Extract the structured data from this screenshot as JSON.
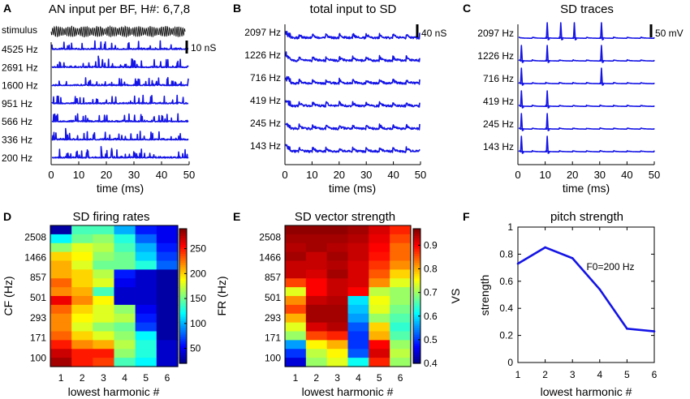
{
  "chart_data": [
    {
      "panel": "A",
      "type": "line",
      "title": "AN input per BF, H#: 6,7,8",
      "xlabel": "time (ms)",
      "ylabel": "",
      "xlim": [
        0,
        50
      ],
      "xticks": [
        "0",
        "10",
        "20",
        "30",
        "40",
        "50"
      ],
      "stimulus_label": "stimulus",
      "scale_bar_label": "10 nS",
      "trace_labels": [
        "4525 Hz",
        "2691 Hz",
        "1600 Hz",
        "951 Hz",
        "566 Hz",
        "336 Hz",
        "200 Hz"
      ]
    },
    {
      "panel": "B",
      "type": "line",
      "title": "total input to SD",
      "xlabel": "time (ms)",
      "ylabel": "",
      "xlim": [
        0,
        50
      ],
      "xticks": [
        "0",
        "10",
        "20",
        "30",
        "40",
        "50"
      ],
      "scale_bar_label": "40 nS",
      "trace_labels": [
        "2097 Hz",
        "1226 Hz",
        "716 Hz",
        "419 Hz",
        "245 Hz",
        "143 Hz"
      ]
    },
    {
      "panel": "C",
      "type": "line",
      "title": "SD traces",
      "xlabel": "time (ms)",
      "ylabel": "",
      "xlim": [
        0,
        50
      ],
      "xticks": [
        "0",
        "10",
        "20",
        "30",
        "40",
        "50"
      ],
      "scale_bar_label": "50 mV",
      "trace_labels": [
        "2097 Hz",
        "1226 Hz",
        "716 Hz",
        "419 Hz",
        "245 Hz",
        "143 Hz"
      ],
      "spike_times_ms": [
        [
          10.5,
          15.5,
          20.5,
          30.5
        ],
        [
          1.0,
          10.5,
          30.5
        ],
        [
          1.0,
          30.5
        ],
        [
          1.0,
          10.5
        ],
        [
          1.0,
          10.5
        ],
        [
          1.0,
          10.5
        ]
      ]
    },
    {
      "panel": "D",
      "type": "heatmap",
      "title": "SD firing rates",
      "xlabel": "lowest harmonic #",
      "ylabel": "CF (Hz)",
      "colorbar_label": "FR (Hz)",
      "x": [
        "1",
        "2",
        "3",
        "4",
        "5",
        "6"
      ],
      "y_ticks": [
        "2508",
        "1466",
        "857",
        "501",
        "293",
        "171",
        "100"
      ],
      "colorbar_ticks": [
        "50",
        "100",
        "150",
        "200",
        "250"
      ],
      "zlim": [
        20,
        290
      ],
      "rows_top_to_bottom": [
        [
          30,
          140,
          140,
          100,
          60,
          50
        ],
        [
          120,
          150,
          160,
          130,
          80,
          50
        ],
        [
          160,
          180,
          170,
          140,
          100,
          60
        ],
        [
          200,
          190,
          160,
          150,
          110,
          70
        ],
        [
          210,
          180,
          150,
          150,
          130,
          80
        ],
        [
          210,
          200,
          170,
          60,
          40,
          30
        ],
        [
          230,
          200,
          180,
          50,
          40,
          30
        ],
        [
          220,
          210,
          140,
          40,
          40,
          30
        ],
        [
          260,
          220,
          190,
          40,
          40,
          30
        ],
        [
          230,
          200,
          180,
          160,
          50,
          30
        ],
        [
          220,
          190,
          180,
          170,
          60,
          30
        ],
        [
          220,
          180,
          160,
          150,
          70,
          30
        ],
        [
          230,
          200,
          180,
          160,
          120,
          30
        ],
        [
          250,
          220,
          210,
          170,
          130,
          40
        ],
        [
          270,
          250,
          250,
          160,
          130,
          40
        ],
        [
          280,
          250,
          240,
          140,
          120,
          40
        ]
      ]
    },
    {
      "panel": "E",
      "type": "heatmap",
      "title": "SD vector strength",
      "xlabel": "lowest harmonic #",
      "ylabel": "",
      "colorbar_label": "VS",
      "x": [
        "1",
        "2",
        "3",
        "4",
        "5",
        "6"
      ],
      "y_ticks": [
        "2508",
        "1466",
        "857",
        "501",
        "293",
        "171",
        "100"
      ],
      "colorbar_ticks": [
        "0.4",
        "0.5",
        "0.6",
        "0.7",
        "0.8",
        "0.9"
      ],
      "zlim": [
        0.4,
        0.97
      ],
      "rows_top_to_bottom": [
        [
          0.96,
          0.96,
          0.96,
          0.95,
          0.92,
          0.88
        ],
        [
          0.95,
          0.95,
          0.95,
          0.94,
          0.91,
          0.86
        ],
        [
          0.94,
          0.95,
          0.94,
          0.93,
          0.9,
          0.84
        ],
        [
          0.95,
          0.93,
          0.95,
          0.93,
          0.89,
          0.84
        ],
        [
          0.93,
          0.93,
          0.94,
          0.92,
          0.87,
          0.82
        ],
        [
          0.93,
          0.92,
          0.95,
          0.92,
          0.85,
          0.78
        ],
        [
          0.86,
          0.9,
          0.93,
          0.92,
          0.82,
          0.74
        ],
        [
          0.74,
          0.9,
          0.93,
          0.9,
          0.72,
          0.7
        ],
        [
          0.82,
          0.93,
          0.94,
          0.6,
          0.75,
          0.7
        ],
        [
          0.86,
          0.95,
          0.95,
          0.58,
          0.74,
          0.68
        ],
        [
          0.8,
          0.95,
          0.95,
          0.56,
          0.7,
          0.66
        ],
        [
          0.74,
          0.92,
          0.94,
          0.52,
          0.78,
          0.64
        ],
        [
          0.7,
          0.86,
          0.88,
          0.5,
          0.8,
          0.66
        ],
        [
          0.56,
          0.76,
          0.8,
          0.5,
          0.9,
          0.7
        ],
        [
          0.5,
          0.72,
          0.76,
          0.52,
          0.92,
          0.72
        ],
        [
          0.45,
          0.7,
          0.74,
          0.62,
          0.88,
          0.7
        ]
      ]
    },
    {
      "panel": "F",
      "type": "line",
      "title": "pitch strength",
      "xlabel": "lowest harmonic #",
      "ylabel": "strength",
      "annotation": "F0=200 Hz",
      "x": [
        1,
        2,
        3,
        4,
        5,
        6
      ],
      "values": [
        0.73,
        0.85,
        0.77,
        0.54,
        0.25,
        0.23
      ],
      "xlim": [
        1,
        6
      ],
      "ylim": [
        0,
        1
      ],
      "xticks": [
        "1",
        "2",
        "3",
        "4",
        "5",
        "6"
      ],
      "yticks": [
        "0",
        "0.2",
        "0.4",
        "0.6",
        "0.8",
        "1"
      ]
    }
  ]
}
